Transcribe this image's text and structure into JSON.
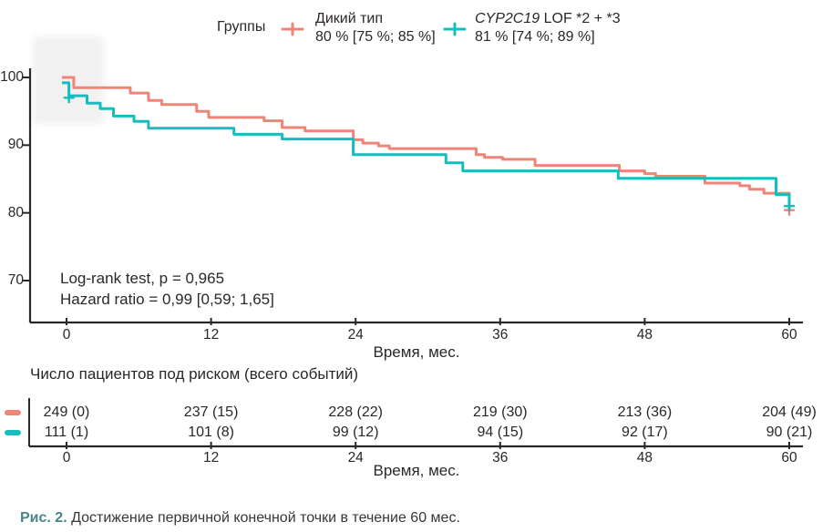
{
  "legend": {
    "title": "Группы",
    "entries": [
      {
        "name": "Дикий тип",
        "estimate": "80 % [75 %; 85 %]",
        "color": "#EF8478"
      },
      {
        "name_italic": "CYP2C19",
        "name_rest": " LOF *2 + *3",
        "estimate": "81 % [74 %; 89 %]",
        "color": "#16BDBE"
      }
    ]
  },
  "chart_data": {
    "type": "line",
    "subtype": "kaplan-meier-step-curves",
    "xlabel": "Время, мес.",
    "x_ticks": [
      0,
      12,
      24,
      36,
      48,
      60
    ],
    "y_ticks": [
      100,
      90,
      80,
      70
    ],
    "xlim": [
      0,
      60
    ],
    "ylim": [
      64,
      100
    ],
    "grid": false,
    "legend_position": "top",
    "annotation": [
      "Log-rank test, p = 0,965",
      "Hazard ratio = 0,99 [0,59; 1,65]"
    ],
    "series": [
      {
        "name": "Дикий тип",
        "color": "#EF8478",
        "final_estimate_pct": 80,
        "steps": [
          [
            0,
            100
          ],
          [
            0.6,
            98.5
          ],
          [
            5.3,
            97.7
          ],
          [
            6.8,
            96.6
          ],
          [
            7.9,
            96.0
          ],
          [
            10.8,
            95.0
          ],
          [
            11.8,
            94.1
          ],
          [
            16.4,
            93.6
          ],
          [
            17.9,
            92.6
          ],
          [
            19.8,
            92.1
          ],
          [
            23.8,
            90.8
          ],
          [
            24.6,
            90.3
          ],
          [
            25.9,
            89.9
          ],
          [
            26.8,
            89.5
          ],
          [
            34.0,
            88.6
          ],
          [
            34.7,
            88.2
          ],
          [
            36.2,
            87.9
          ],
          [
            38.9,
            87.0
          ],
          [
            45.9,
            86.2
          ],
          [
            48.0,
            85.8
          ],
          [
            48.9,
            85.4
          ],
          [
            53.0,
            84.4
          ],
          [
            55.9,
            84.0
          ],
          [
            56.7,
            83.5
          ],
          [
            57.9,
            82.9
          ],
          [
            60,
            80.4
          ]
        ],
        "censored": [
          [
            60,
            80.4
          ]
        ]
      },
      {
        "name": "CYP2C19 LOF *2 + *3",
        "color": "#16BDBE",
        "final_estimate_pct": 81,
        "steps": [
          [
            0,
            99.2
          ],
          [
            0.2,
            97.3
          ],
          [
            1.7,
            96.2
          ],
          [
            2.8,
            95.4
          ],
          [
            3.9,
            94.3
          ],
          [
            5.6,
            93.5
          ],
          [
            6.8,
            92.5
          ],
          [
            13.9,
            91.6
          ],
          [
            17.9,
            90.9
          ],
          [
            23.8,
            88.6
          ],
          [
            31.5,
            87.4
          ],
          [
            32.9,
            86.2
          ],
          [
            45.8,
            85.1
          ],
          [
            58.9,
            82.7
          ],
          [
            60,
            81.0
          ]
        ],
        "censored": [
          [
            0.2,
            97.0
          ],
          [
            60,
            81.0
          ]
        ]
      }
    ]
  },
  "risk_table": {
    "title": "Число пациентов под риском (всего событий)",
    "xlabel": "Время, мес.",
    "x_ticks": [
      0,
      12,
      24,
      36,
      48,
      60
    ],
    "rows": [
      {
        "group": "Дикий тип",
        "color": "#EF8478",
        "values": [
          "249 (0)",
          "237 (15)",
          "228 (22)",
          "219 (30)",
          "213 (36)",
          "204 (49)"
        ]
      },
      {
        "group": "CYP2C19 LOF *2 + *3",
        "color": "#16BDBE",
        "values": [
          "111 (1)",
          "101 (8)",
          "99 (12)",
          "94 (15)",
          "92 (17)",
          "90 (21)"
        ]
      }
    ]
  },
  "caption": {
    "label": "Рис. 2.",
    "text": " Достижение первичной конечной точки в течение 60 мес."
  },
  "colors": {
    "wild_type": "#EF8478",
    "lof": "#16BDBE",
    "axis": "#2B2728",
    "caption_label": "#45868A"
  }
}
